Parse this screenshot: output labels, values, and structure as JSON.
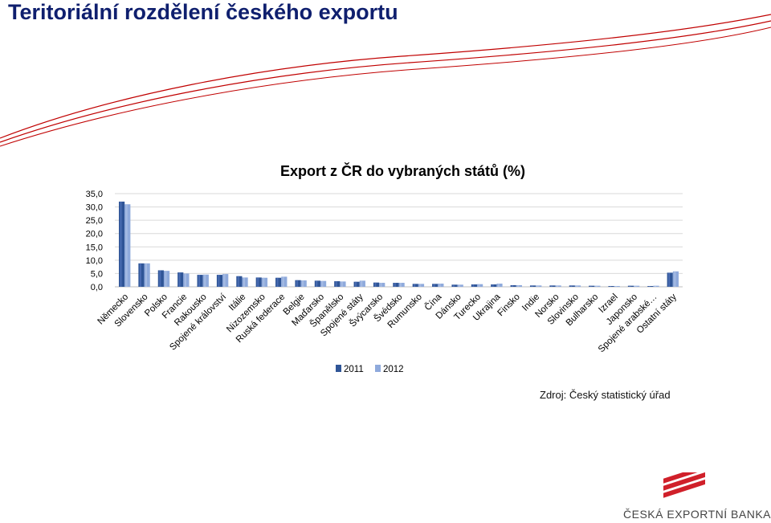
{
  "slide_title": "Teritoriální rozdělení českého exportu",
  "source_note": "Zdroj: Český statistický úřad",
  "bank_name": "ČESKÁ EXPORTNÍ BANKA",
  "logo_icon": "ceb-flag-stripes-icon",
  "colors": {
    "title": "#0f1f6e",
    "series_2011": "#2f5597",
    "series_2012": "#8faadc",
    "wave": "#c00000",
    "logo_red": "#d0202a"
  },
  "chart_data": {
    "type": "bar",
    "title": "Export z ČR do vybraných států (%)",
    "xlabel": "",
    "ylabel": "",
    "ylim": [
      0,
      35
    ],
    "yticks": [
      "35,0",
      "30,0",
      "25,0",
      "20,0",
      "15,0",
      "10,0",
      "5,0",
      "0,0"
    ],
    "grid": true,
    "legend": "bottom-center",
    "categories": [
      "Německo",
      "Slovensko",
      "Polsko",
      "Francie",
      "Rakousko",
      "Spojené království",
      "Itálie",
      "Nizozemsko",
      "Ruská federace",
      "Belgie",
      "Maďarsko",
      "Španělsko",
      "Spojené státy",
      "Švýcarsko",
      "Švédsko",
      "Rumunsko",
      "Čína",
      "Dánsko",
      "Turecko",
      "Ukrajina",
      "Finsko",
      "Indie",
      "Norsko",
      "Slovinsko",
      "Bulharsko",
      "Izrael",
      "Japonsko",
      "Spojené arabské…",
      "Ostatní státy"
    ],
    "series": [
      {
        "name": "2011",
        "values": [
          32.0,
          8.8,
          6.2,
          5.4,
          4.5,
          4.5,
          4.0,
          3.5,
          3.4,
          2.5,
          2.3,
          2.1,
          1.9,
          1.6,
          1.5,
          1.1,
          1.1,
          0.8,
          0.9,
          0.9,
          0.6,
          0.5,
          0.5,
          0.5,
          0.4,
          0.3,
          0.4,
          0.3,
          5.3
        ]
      },
      {
        "name": "2012",
        "values": [
          31.0,
          8.8,
          6.0,
          5.0,
          4.6,
          4.8,
          3.5,
          3.4,
          3.8,
          2.4,
          2.2,
          2.0,
          2.3,
          1.5,
          1.5,
          1.1,
          1.2,
          0.8,
          1.0,
          1.2,
          0.6,
          0.5,
          0.5,
          0.5,
          0.4,
          0.3,
          0.4,
          0.4,
          5.8
        ]
      }
    ]
  }
}
